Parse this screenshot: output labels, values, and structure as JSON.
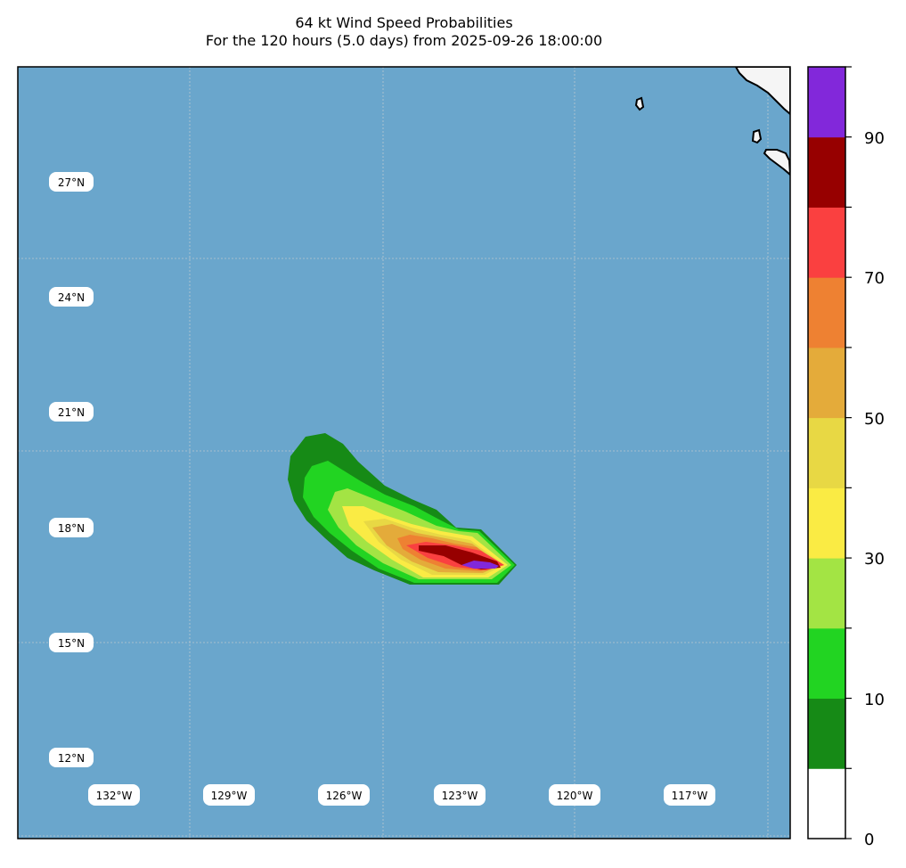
{
  "title": {
    "line1": "64 kt Wind Speed Probabilities",
    "line2": "For the 120 hours (5.0 days) from 2025-09-26 18:00:00"
  },
  "colors": {
    "ocean": "#6aa6cc",
    "land": "#f5f5f5",
    "gridline": "#d9d9d9"
  },
  "lat_labels": [
    "27°N",
    "24°N",
    "21°N",
    "18°N",
    "15°N",
    "12°N"
  ],
  "lon_labels": [
    "132°W",
    "129°W",
    "126°W",
    "123°W",
    "120°W",
    "117°W"
  ],
  "colorbar": {
    "tick_labels": [
      "0",
      "10",
      "30",
      "50",
      "70",
      "90"
    ],
    "levels": [
      {
        "range": "0-5",
        "color": "#ffffff"
      },
      {
        "range": "5-10",
        "color": "#168a16"
      },
      {
        "range": "10-20",
        "color": "#22d422"
      },
      {
        "range": "20-30",
        "color": "#a3e444"
      },
      {
        "range": "30-40",
        "color": "#faeb44"
      },
      {
        "range": "40-50",
        "color": "#e8d844"
      },
      {
        "range": "50-60",
        "color": "#e4ab3a"
      },
      {
        "range": "60-70",
        "color": "#ee8132"
      },
      {
        "range": "70-80",
        "color": "#fa4040"
      },
      {
        "range": "80-90",
        "color": "#970000"
      },
      {
        "range": "90-100",
        "color": "#8228da"
      }
    ]
  }
}
